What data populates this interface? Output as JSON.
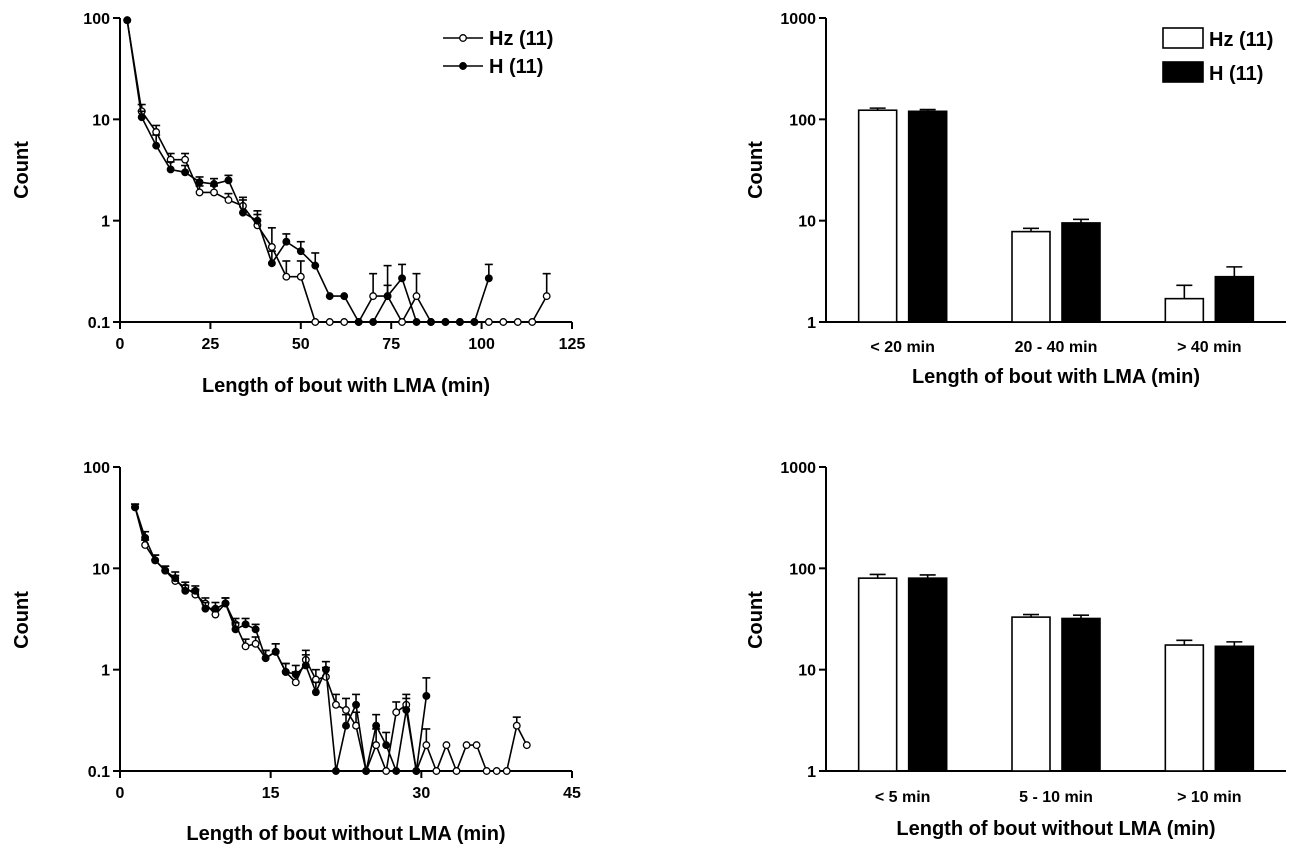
{
  "chart_data": [
    {
      "type": "line",
      "xlabel": "Length of bout with LMA (min)",
      "ylabel": "Count",
      "xlim": [
        0,
        125
      ],
      "ylim": [
        0.1,
        100
      ],
      "yscale": "log",
      "xticks": [
        0,
        25,
        50,
        75,
        100,
        125
      ],
      "xtick_labels": [
        "0",
        "25",
        "50",
        "75",
        "100",
        "125"
      ],
      "yticks": [
        0.1,
        1,
        10,
        100
      ],
      "ytick_labels": [
        "0.1",
        "1",
        "10",
        "100"
      ],
      "legend_position": "top-right",
      "series": [
        {
          "name": "Hz (11)",
          "marker": "open-circle",
          "x": [
            2,
            6,
            10,
            14,
            18,
            22,
            26,
            30,
            34,
            38,
            42,
            46,
            50,
            54,
            58,
            62,
            66,
            70,
            74,
            78,
            82,
            86,
            90,
            94,
            98,
            102,
            106,
            110,
            114,
            118
          ],
          "y": [
            95,
            12,
            7.5,
            4,
            4,
            1.9,
            1.9,
            1.6,
            1.4,
            0.9,
            0.55,
            0.28,
            0.28,
            0.1,
            0.1,
            0.1,
            0.1,
            0.18,
            0.18,
            0.1,
            0.18,
            0.1,
            0.1,
            0.1,
            0.1,
            0.1,
            0.1,
            0.1,
            0.1,
            0.18
          ],
          "err": [
            0,
            2,
            1.2,
            0.6,
            0.6,
            0.3,
            0.3,
            0.25,
            0.3,
            0.25,
            0.3,
            0.12,
            0.12,
            0,
            0,
            0,
            0,
            0.12,
            0.18,
            0,
            0.12,
            0,
            0,
            0,
            0,
            0,
            0,
            0,
            0,
            0.12
          ]
        },
        {
          "name": "H (11)",
          "marker": "filled-circle",
          "x": [
            2,
            6,
            10,
            14,
            18,
            22,
            26,
            30,
            34,
            38,
            42,
            46,
            50,
            54,
            58,
            62,
            66,
            70,
            74,
            78,
            82,
            86,
            90,
            94,
            98,
            102
          ],
          "y": [
            95,
            10.5,
            5.5,
            3.2,
            3,
            2.4,
            2.3,
            2.5,
            1.2,
            1,
            0.38,
            0.62,
            0.5,
            0.36,
            0.18,
            0.18,
            0.1,
            0.1,
            0.18,
            0.27,
            0.1,
            0.1,
            0.1,
            0.1,
            0.1,
            0.27
          ],
          "err": [
            0,
            1.5,
            1.5,
            0.6,
            0.5,
            0.3,
            0.3,
            0.3,
            0.4,
            0.25,
            0.12,
            0.12,
            0.12,
            0.12,
            0,
            0,
            0,
            0,
            0.05,
            0.1,
            0,
            0,
            0,
            0,
            0,
            0.1
          ]
        }
      ]
    },
    {
      "type": "bar",
      "xlabel": "Length of bout with LMA (min)",
      "ylabel": "Count",
      "ylim": [
        1,
        1000
      ],
      "yscale": "log",
      "yticks": [
        1,
        10,
        100,
        1000
      ],
      "ytick_labels": [
        "1",
        "10",
        "100",
        "1000"
      ],
      "categories": [
        "< 20 min",
        "20 - 40 min",
        "> 40 min"
      ],
      "legend_position": "top-right",
      "series": [
        {
          "name": "Hz (11)",
          "color": "#ffffff",
          "values": [
            123,
            7.8,
            1.7
          ],
          "err": [
            6,
            0.6,
            0.6
          ]
        },
        {
          "name": "H (11)",
          "color": "#000000",
          "values": [
            120,
            9.5,
            2.8
          ],
          "err": [
            5,
            0.8,
            0.7
          ]
        }
      ]
    },
    {
      "type": "line",
      "xlabel": "Length of bout without LMA (min)",
      "ylabel": "Count",
      "xlim": [
        0,
        45
      ],
      "ylim": [
        0.1,
        100
      ],
      "yscale": "log",
      "xticks": [
        0,
        15,
        30,
        45
      ],
      "xtick_labels": [
        "0",
        "15",
        "30",
        "45"
      ],
      "yticks": [
        0.1,
        1,
        10,
        100
      ],
      "ytick_labels": [
        "0.1",
        "1",
        "10",
        "100"
      ],
      "series": [
        {
          "name": "Hz (11)",
          "marker": "open-circle",
          "x": [
            1.5,
            2.5,
            3.5,
            4.5,
            5.5,
            6.5,
            7.5,
            8.5,
            9.5,
            10.5,
            11.5,
            12.5,
            13.5,
            14.5,
            15.5,
            16.5,
            17.5,
            18.5,
            19.5,
            20.5,
            21.5,
            22.5,
            23.5,
            24.5,
            25.5,
            26.5,
            27.5,
            28.5,
            29.5,
            30.5,
            31.5,
            32.5,
            33.5,
            34.5,
            35.5,
            36.5,
            37.5,
            38.5,
            39.5,
            40.5
          ],
          "y": [
            40,
            17,
            12,
            9.5,
            7.5,
            6.5,
            5.5,
            4.5,
            3.5,
            4.5,
            2.8,
            1.7,
            1.8,
            1.3,
            1.5,
            0.95,
            0.75,
            1.25,
            0.8,
            0.85,
            0.45,
            0.4,
            0.28,
            0.1,
            0.18,
            0.1,
            0.38,
            0.45,
            0.1,
            0.18,
            0.1,
            0.18,
            0.1,
            0.18,
            0.18,
            0.1,
            0.1,
            0.1,
            0.28,
            0.18
          ],
          "err": [
            3,
            2,
            1.5,
            1,
            1,
            0.8,
            0.7,
            0.6,
            0.6,
            0.6,
            0.4,
            0.3,
            0.3,
            0.25,
            0.3,
            0.2,
            0.2,
            0.3,
            0.2,
            0.2,
            0.12,
            0.12,
            0.1,
            0,
            0.08,
            0,
            0.1,
            0.12,
            0,
            0.08,
            0,
            0,
            0,
            0,
            0,
            0,
            0,
            0,
            0.06,
            0
          ]
        },
        {
          "name": "H (11)",
          "marker": "filled-circle",
          "x": [
            1.5,
            2.5,
            3.5,
            4.5,
            5.5,
            6.5,
            7.5,
            8.5,
            9.5,
            10.5,
            11.5,
            12.5,
            13.5,
            14.5,
            15.5,
            16.5,
            17.5,
            18.5,
            19.5,
            20.5,
            21.5,
            22.5,
            23.5,
            24.5,
            25.5,
            26.5,
            27.5,
            28.5,
            29.5,
            30.5
          ],
          "y": [
            40,
            20,
            12,
            9.5,
            8,
            6,
            6,
            4,
            4,
            4.5,
            2.5,
            2.8,
            2.5,
            1.3,
            1.5,
            0.95,
            0.9,
            1.1,
            0.6,
            1,
            0.1,
            0.28,
            0.45,
            0.1,
            0.28,
            0.18,
            0.1,
            0.4,
            0.1,
            0.55
          ],
          "err": [
            3,
            3,
            1.5,
            1,
            1.2,
            0.8,
            0.7,
            0.6,
            0.6,
            0.6,
            0.4,
            0.4,
            0.3,
            0.25,
            0.3,
            0.2,
            0.2,
            0.3,
            0.15,
            0.2,
            0,
            0.08,
            0.12,
            0,
            0.08,
            0.06,
            0,
            0.12,
            0,
            0.28
          ]
        }
      ]
    },
    {
      "type": "bar",
      "xlabel": "Length of bout without LMA (min)",
      "ylabel": "Count",
      "ylim": [
        1,
        1000
      ],
      "yscale": "log",
      "yticks": [
        1,
        10,
        100,
        1000
      ],
      "ytick_labels": [
        "1",
        "10",
        "100",
        "1000"
      ],
      "categories": [
        "< 5 min",
        "5 - 10 min",
        "> 10 min"
      ],
      "series": [
        {
          "name": "Hz (11)",
          "color": "#ffffff",
          "values": [
            80,
            33,
            17.5
          ],
          "err": [
            7,
            2,
            2
          ]
        },
        {
          "name": "H (11)",
          "color": "#000000",
          "values": [
            80,
            32,
            17
          ],
          "err": [
            6,
            2.5,
            1.8
          ]
        }
      ]
    }
  ]
}
